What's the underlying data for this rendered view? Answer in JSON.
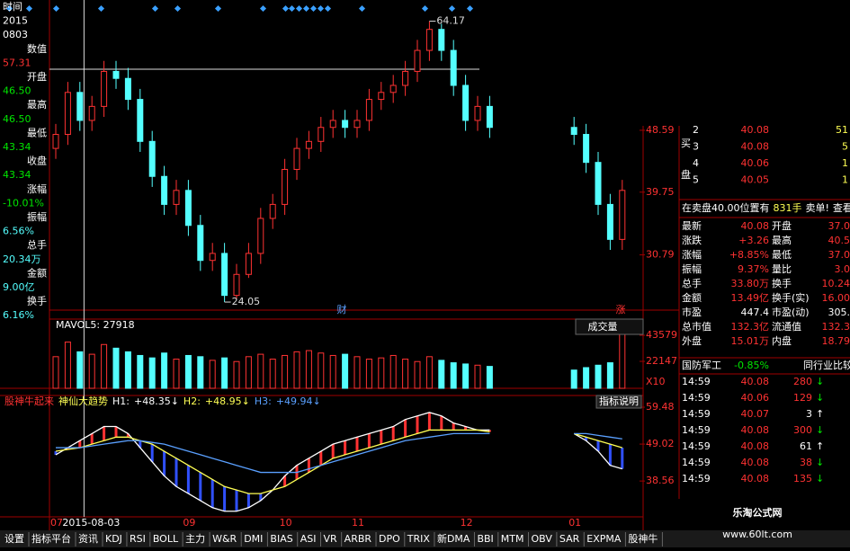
{
  "info_panel": [
    {
      "text": "时间",
      "color": "#ffffff"
    },
    {
      "text": "2015",
      "color": "#ffffff"
    },
    {
      "text": "0803",
      "color": "#ffffff"
    },
    {
      "text": "数值",
      "color": "#ffffff"
    },
    {
      "text": "57.31",
      "color": "#ff3232"
    },
    {
      "text": "开盘",
      "color": "#ffffff"
    },
    {
      "text": "46.50",
      "color": "#00e600"
    },
    {
      "text": "最高",
      "color": "#ffffff"
    },
    {
      "text": "46.50",
      "color": "#00e600"
    },
    {
      "text": "最低",
      "color": "#ffffff"
    },
    {
      "text": "43.34",
      "color": "#00e600"
    },
    {
      "text": "收盘",
      "color": "#ffffff"
    },
    {
      "text": "43.34",
      "color": "#00e600"
    },
    {
      "text": "涨幅",
      "color": "#ffffff"
    },
    {
      "text": "-10.01%",
      "color": "#00e600"
    },
    {
      "text": "振幅",
      "color": "#ffffff"
    },
    {
      "text": "6.56%",
      "color": "#54ffff"
    },
    {
      "text": "总手",
      "color": "#ffffff"
    },
    {
      "text": "20.34万",
      "color": "#54ffff"
    },
    {
      "text": "金额",
      "color": "#ffffff"
    },
    {
      "text": "9.00亿",
      "color": "#54ffff"
    },
    {
      "text": "换手",
      "color": "#ffffff"
    },
    {
      "text": "6.16%",
      "color": "#54ffff"
    }
  ],
  "chart_data": [
    {
      "type": "candlestick",
      "categories": [
        "07",
        "2015-08-03",
        null,
        null,
        null,
        null,
        null,
        null,
        null,
        null,
        null,
        "09",
        null,
        null,
        null,
        null,
        null,
        null,
        null,
        "10",
        null,
        null,
        null,
        null,
        null,
        "11",
        null,
        null,
        null,
        null,
        null,
        null,
        null,
        null,
        "12",
        null,
        null,
        null,
        null,
        null,
        null,
        null,
        null,
        "01",
        null,
        null,
        null,
        null
      ],
      "open": [
        46,
        48,
        54,
        50,
        52,
        57,
        56,
        53,
        47,
        42,
        38,
        40,
        35,
        30,
        31,
        25,
        28,
        31,
        36,
        38,
        43,
        46,
        47,
        49,
        50,
        49,
        50,
        53,
        54,
        55,
        57,
        60,
        63,
        60,
        55,
        50,
        52,
        null,
        null,
        null,
        null,
        null,
        null,
        49,
        48,
        44,
        38,
        33
      ],
      "close": [
        48,
        54,
        50,
        52,
        57,
        56,
        53,
        47,
        42,
        38,
        40,
        35,
        30,
        31,
        25,
        28,
        31,
        36,
        38,
        43,
        46,
        47,
        49,
        50,
        49,
        50,
        53,
        54,
        55,
        57,
        60,
        63,
        60,
        55,
        50,
        52,
        49,
        null,
        null,
        null,
        null,
        null,
        null,
        48,
        44,
        38,
        33,
        40
      ],
      "high": [
        49.5,
        55.5,
        55.5,
        53.5,
        58.5,
        58.5,
        57.5,
        54.5,
        48.5,
        43.5,
        41.5,
        41.5,
        36.5,
        32.5,
        32.5,
        29.5,
        32.5,
        37.5,
        39.5,
        44.5,
        47.5,
        48.5,
        50.5,
        51.5,
        51.5,
        51.5,
        54.5,
        55.5,
        56.5,
        58.5,
        61.5,
        64.17,
        63.8,
        61.5,
        56.5,
        53.5,
        53.5,
        null,
        null,
        null,
        null,
        null,
        null,
        50.5,
        49.5,
        45.5,
        39.5,
        41.5
      ],
      "low": [
        44.5,
        46.5,
        48.5,
        48.5,
        50.5,
        54.5,
        51.5,
        45.5,
        40.5,
        36.5,
        36.5,
        33.5,
        28.5,
        28.5,
        24.05,
        24.5,
        27.5,
        29.5,
        34.5,
        36.5,
        41.5,
        44.5,
        45.5,
        47.5,
        47.5,
        47.5,
        48.5,
        51.5,
        52.5,
        53.5,
        55.5,
        58.5,
        58.5,
        53.5,
        48.5,
        48.5,
        47.5,
        null,
        null,
        null,
        null,
        null,
        null,
        46.5,
        42.5,
        36.5,
        31.5,
        31.5
      ],
      "up_color": "#ff3232",
      "down_color": "#54ffff",
      "ylim": [
        22.9,
        67.2
      ],
      "yticks": [
        30.79,
        39.75,
        48.59
      ],
      "crosshair": 57.31,
      "max_label": "64.17",
      "min_label": "24.05",
      "markers": [
        "财",
        "涨"
      ]
    },
    {
      "type": "bar",
      "title": "成交量",
      "label": "MAVOL5: 27918",
      "unit": "X10",
      "values": [
        26000,
        38000,
        30000,
        28000,
        36000,
        33000,
        30000,
        27000,
        25000,
        29000,
        24000,
        27000,
        26000,
        23000,
        25000,
        22000,
        26000,
        28000,
        24000,
        27000,
        30000,
        31000,
        29000,
        27000,
        28000,
        26000,
        24000,
        25000,
        27000,
        24000,
        22000,
        26000,
        23000,
        21000,
        20000,
        19000,
        18000,
        null,
        null,
        null,
        null,
        null,
        null,
        15000,
        17000,
        19000,
        21000,
        45000
      ],
      "ylim": [
        0,
        53200
      ],
      "yticks": [
        22147,
        43579
      ]
    },
    {
      "type": "line",
      "title": "股神牛起来",
      "indicator": "神仙大趋势",
      "help": "指标说明",
      "ylim": [
        28.4,
        62.8
      ],
      "yticks": [
        38.56,
        49.02,
        59.48
      ],
      "up_color": "#ff3232",
      "down_color": "#3050ff",
      "series": [
        {
          "name": "H1:",
          "last": "+48.35↓",
          "color": "#ffffff",
          "values": [
            46,
            48,
            50,
            52,
            54,
            54,
            52,
            48,
            44,
            40,
            37,
            35,
            33,
            31,
            30,
            30,
            31,
            33,
            36,
            40,
            43,
            45,
            47,
            49,
            50,
            51,
            52,
            53,
            54,
            56,
            57,
            58,
            57,
            55,
            54,
            53,
            53,
            null,
            null,
            null,
            null,
            null,
            null,
            52,
            50,
            47,
            43,
            42
          ]
        },
        {
          "name": "H2:",
          "last": "+48.95↓",
          "color": "#ffff54",
          "values": [
            47,
            47.5,
            48,
            49,
            50,
            51,
            51,
            50,
            49,
            47,
            45,
            43,
            41,
            39,
            37,
            36,
            35,
            35,
            36,
            37,
            39,
            41,
            43,
            45,
            46,
            47,
            48,
            49,
            50,
            51,
            52,
            53,
            53,
            53,
            53,
            53,
            52.5,
            null,
            null,
            null,
            null,
            null,
            null,
            52,
            51,
            50,
            49,
            48
          ]
        },
        {
          "name": "H3:",
          "last": "+49.94↓",
          "color": "#5aa0ff",
          "values": [
            48,
            48,
            48,
            48.5,
            49,
            49.5,
            50,
            50,
            49.5,
            49,
            48,
            47,
            46,
            45,
            44,
            43,
            42,
            41,
            41,
            41,
            41,
            42,
            43,
            44,
            45,
            46,
            47,
            48,
            49,
            50,
            50.5,
            51,
            51.5,
            52,
            52,
            52,
            52,
            null,
            null,
            null,
            null,
            null,
            null,
            52,
            52,
            51.5,
            51,
            50.5
          ]
        }
      ]
    }
  ],
  "order_book": {
    "side": [
      "买",
      "盘"
    ],
    "rows": [
      [
        "2",
        "40.08",
        "51"
      ],
      [
        "3",
        "40.08",
        "5"
      ],
      [
        "4",
        "40.06",
        "1"
      ],
      [
        "5",
        "40.05",
        "1"
      ]
    ]
  },
  "notice": [
    "在卖盘40.00位置有",
    "831手",
    "卖单!",
    "查看详情"
  ],
  "stats": [
    [
      "最新",
      "40.08",
      "开盘",
      "37.0"
    ],
    [
      "涨跌",
      "+3.26",
      "最高",
      "40.5"
    ],
    [
      "涨幅",
      "+8.85%",
      "最低",
      "37.0"
    ],
    [
      "振幅",
      "9.37%",
      "量比",
      "3.0"
    ],
    [
      "总手",
      "33.80万",
      "换手",
      "10.24"
    ],
    [
      "金额",
      "13.49亿",
      "换手(实)",
      "16.00"
    ],
    [
      "市盈",
      "447.4",
      "市盈(动)",
      "305."
    ],
    [
      "总市值",
      "132.3亿",
      "流通值",
      "132.3"
    ],
    [
      "外盘",
      "15.01万",
      "内盘",
      "18.79"
    ]
  ],
  "sector": [
    "国防军工",
    "-0.85%",
    "同行业比较"
  ],
  "trades": [
    [
      "14:59",
      "40.08",
      "280",
      "↓"
    ],
    [
      "14:59",
      "40.06",
      "129",
      "↓"
    ],
    [
      "14:59",
      "40.07",
      "3",
      "↑"
    ],
    [
      "14:59",
      "40.08",
      "300",
      "↓"
    ],
    [
      "14:59",
      "40.08",
      "61",
      "↑"
    ],
    [
      "14:59",
      "40.08",
      "38",
      "↓"
    ],
    [
      "14:59",
      "40.08",
      "135",
      "↓"
    ]
  ],
  "tabs": [
    "设置",
    "指标平台",
    "资讯",
    "KDJ",
    "RSI",
    "BOLL",
    "主力",
    "W&R",
    "DMI",
    "BIAS",
    "ASI",
    "VR",
    "ARBR",
    "DPO",
    "TRIX",
    "新DMA",
    "BBI",
    "MTM",
    "OBV",
    "SAR",
    "EXPMA",
    "股神牛"
  ],
  "watermark": [
    "乐淘公式网",
    "www.60lt.com"
  ]
}
